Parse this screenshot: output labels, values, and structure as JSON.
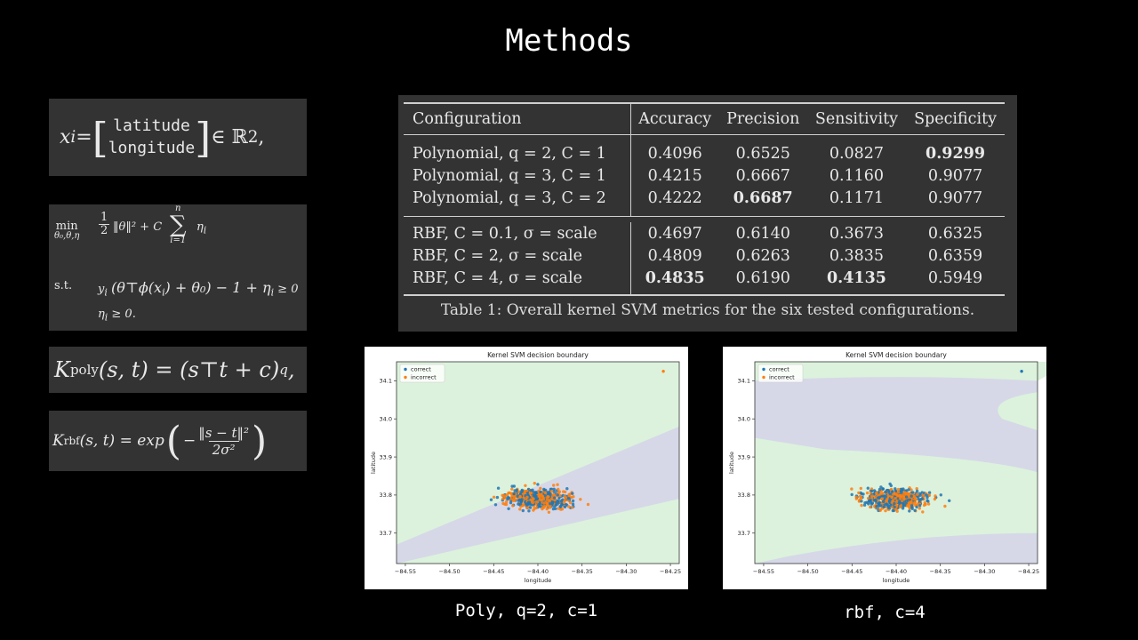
{
  "slide": {
    "title": "Methods"
  },
  "equations": {
    "feature": {
      "lhs": "x",
      "sub": "i",
      "eq": " = ",
      "top": "latitude",
      "bottom": "longitude",
      "rhs": " ∈ ℝ",
      "sup": "2",
      "tail": ","
    },
    "objective": {
      "min": "min",
      "minsub": "θ₀,θ,η",
      "half": "1",
      "halfden": "2",
      "norm": "‖θ‖² + C",
      "sumtop": "n",
      "sumbot": "i=1",
      "eta": "η",
      "etasub": "i",
      "st": "s.t.",
      "c1": "y",
      "c1sub": "i",
      "c1body": "(θ⊤ϕ(x",
      "c1b2": ") + θ₀) − 1 + η",
      "c1b3": " ≥ 0",
      "c2": "η",
      "c2tail": " ≥ 0."
    },
    "poly": {
      "k": "K",
      "sub": "poly",
      "body": "(s, t) = (s⊤t + c)",
      "sup": "q",
      "tail": ","
    },
    "rbf": {
      "k": "K",
      "sub": "rbf",
      "body": "(s, t) = exp",
      "num": "‖s − t‖²",
      "den": "2σ²",
      "minus": "−"
    }
  },
  "table": {
    "headers": [
      "Configuration",
      "Accuracy",
      "Precision",
      "Sensitivity",
      "Specificity"
    ],
    "group1": [
      {
        "cfg": "Polynomial, q = 2, C = 1",
        "values": [
          "0.4096",
          "0.6525",
          "0.0827",
          "0.9299"
        ],
        "bold": [
          3
        ]
      },
      {
        "cfg": "Polynomial, q = 3, C = 1",
        "values": [
          "0.4215",
          "0.6667",
          "0.1160",
          "0.9077"
        ],
        "bold": []
      },
      {
        "cfg": "Polynomial, q = 3, C = 2",
        "values": [
          "0.4222",
          "0.6687",
          "0.1171",
          "0.9077"
        ],
        "bold": [
          1
        ]
      }
    ],
    "group2": [
      {
        "cfg": "RBF, C = 0.1, σ = scale",
        "values": [
          "0.4697",
          "0.6140",
          "0.3673",
          "0.6325"
        ],
        "bold": []
      },
      {
        "cfg": "RBF, C = 2, σ = scale",
        "values": [
          "0.4809",
          "0.6263",
          "0.3835",
          "0.6359"
        ],
        "bold": []
      },
      {
        "cfg": "RBF, C = 4, σ = scale",
        "values": [
          "0.4835",
          "0.6190",
          "0.4135",
          "0.5949"
        ],
        "bold": [
          0,
          2
        ]
      }
    ],
    "caption": "Table 1: Overall kernel SVM metrics for the six tested configurations."
  },
  "plots": [
    {
      "title": "Kernel SVM decision boundary",
      "xlabel": "longitude",
      "ylabel": "latitude",
      "legend": [
        "correct",
        "incorrect"
      ],
      "caption": "Poly, q=2, c=1",
      "kernel": "poly"
    },
    {
      "title": "Kernel SVM decision boundary",
      "xlabel": "longitude",
      "ylabel": "latitude",
      "legend": [
        "correct",
        "incorrect"
      ],
      "caption": "rbf, c=4",
      "kernel": "rbf"
    }
  ],
  "axes": {
    "xticks": [
      "−84.55",
      "−84.50",
      "−84.45",
      "−84.40",
      "−84.35",
      "−84.30",
      "−84.25"
    ],
    "yticks": [
      "33.7",
      "33.8",
      "33.9",
      "34.0",
      "34.1"
    ],
    "xlim": [
      -84.56,
      -84.24
    ],
    "ylim": [
      33.62,
      34.15
    ]
  },
  "colors": {
    "correct": "#1f77b4",
    "incorrect": "#ff7f0e",
    "region_a": "#dcf2dc",
    "region_b": "#d6d8e8"
  }
}
